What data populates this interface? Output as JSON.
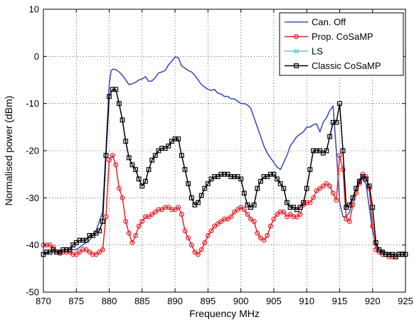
{
  "chart_data": {
    "type": "line",
    "title": "",
    "xlabel": "Frequency MHz",
    "ylabel": "Normalised power (dBm)",
    "xlim": [
      870,
      925
    ],
    "ylim": [
      -50,
      10
    ],
    "xticks": [
      870,
      875,
      880,
      885,
      890,
      895,
      900,
      905,
      910,
      915,
      920,
      925
    ],
    "yticks": [
      -50,
      -40,
      -30,
      -20,
      -10,
      0,
      10
    ],
    "grid": true,
    "legend_position": "top-right",
    "series": [
      {
        "name": "Can. Off",
        "color": "#3f51b5",
        "marker": "none",
        "x": [
          870,
          871,
          872,
          873,
          874,
          875,
          876,
          877,
          878,
          879,
          879.5,
          880,
          880.3,
          880.6,
          881,
          881.5,
          882,
          882.5,
          883,
          883.5,
          884,
          884.5,
          885,
          885.5,
          886,
          886.5,
          887,
          887.5,
          888,
          888.5,
          889,
          889.5,
          890,
          890.5,
          891,
          891.5,
          892,
          892.5,
          893,
          893.5,
          894,
          894.5,
          895,
          895.5,
          896,
          896.5,
          897,
          897.5,
          898,
          898.5,
          899,
          899.5,
          900,
          900.5,
          901,
          901.5,
          902,
          902.5,
          903,
          903.5,
          904,
          904.5,
          905,
          905.5,
          906,
          906.5,
          907,
          907.5,
          908,
          908.5,
          909,
          909.5,
          910,
          910.5,
          911,
          911.5,
          912,
          912.5,
          913,
          913.5,
          914,
          914.5,
          915,
          915.5,
          916,
          916.5,
          917,
          917.5,
          918,
          918.5,
          919,
          919.5,
          920,
          920.5,
          921,
          922,
          923,
          924,
          925
        ],
        "y": [
          -42,
          -41.5,
          -41.5,
          -41,
          -41,
          -41,
          -40,
          -39,
          -37,
          -33,
          -20,
          -6,
          -3,
          -2.7,
          -2.8,
          -3.3,
          -4,
          -5,
          -6,
          -5.8,
          -5.5,
          -5,
          -4.8,
          -4.3,
          -5.3,
          -5.2,
          -4.5,
          -3.5,
          -3.3,
          -3,
          -1.8,
          -1,
          -0.1,
          -0.3,
          -2,
          -2.5,
          -3,
          -3.3,
          -4,
          -5,
          -6,
          -6.5,
          -7,
          -7.2,
          -7,
          -7.8,
          -8,
          -8.5,
          -8.5,
          -9,
          -9,
          -9.5,
          -10,
          -10,
          -10.3,
          -11,
          -13,
          -15,
          -17,
          -19,
          -20.5,
          -21.5,
          -22.5,
          -23.5,
          -24,
          -22.5,
          -21,
          -19,
          -18,
          -17,
          -16.5,
          -16,
          -15,
          -15,
          -14.5,
          -14.3,
          -16,
          -14,
          -13,
          -11.5,
          -10.5,
          -20,
          -31,
          -34,
          -34,
          -33,
          -30,
          -28,
          -26,
          -26,
          -27,
          -32,
          -37,
          -40,
          -41,
          -41.5,
          -42,
          -41.5,
          -41.5
        ]
      },
      {
        "name": "Prop. CoSaMP",
        "color": "#e8222a",
        "marker": "circle",
        "x": [
          870,
          870.5,
          871,
          871.5,
          872,
          872.5,
          873,
          873.5,
          874,
          874.5,
          875,
          875.5,
          876,
          876.5,
          877,
          877.5,
          878,
          878.5,
          879,
          879.5,
          880,
          880.5,
          881,
          881.5,
          882,
          882.5,
          883,
          883.5,
          884,
          884.5,
          885,
          885.5,
          886,
          886.5,
          887,
          887.5,
          888,
          888.5,
          889,
          889.5,
          890,
          890.5,
          891,
          891.5,
          892,
          892.5,
          893,
          893.5,
          894,
          894.5,
          895,
          895.5,
          896,
          896.5,
          897,
          897.5,
          898,
          898.5,
          899,
          899.5,
          900,
          900.5,
          901,
          901.5,
          902,
          902.5,
          903,
          903.5,
          904,
          904.5,
          905,
          905.5,
          906,
          906.5,
          907,
          907.5,
          908,
          908.5,
          909,
          909.5,
          910,
          910.5,
          911,
          911.5,
          912,
          912.5,
          913,
          913.5,
          914,
          914.5,
          915,
          915.5,
          916,
          916.5,
          917,
          917.5,
          918,
          918.5,
          919,
          919.5,
          920,
          920.5,
          921,
          921.5,
          922,
          922.5,
          923,
          923.5,
          924,
          924.5,
          925
        ],
        "y": [
          -40,
          -40,
          -40,
          -40.5,
          -41.5,
          -41.8,
          -41.5,
          -41.5,
          -41.5,
          -42,
          -42,
          -41.5,
          -41,
          -41,
          -41.5,
          -42,
          -42,
          -41.5,
          -41,
          -34,
          -22,
          -21,
          -23,
          -28,
          -30,
          -35,
          -37.5,
          -39.5,
          -38,
          -36,
          -35,
          -34,
          -34,
          -33.5,
          -33,
          -32.5,
          -32.5,
          -32,
          -32,
          -32.5,
          -32.5,
          -32,
          -33.5,
          -37,
          -38.5,
          -40,
          -41.5,
          -42,
          -41,
          -39.5,
          -38,
          -37,
          -36,
          -35.5,
          -35,
          -34.5,
          -34.5,
          -34,
          -33,
          -32.5,
          -32,
          -32.5,
          -33.5,
          -34.5,
          -35,
          -37.5,
          -38.5,
          -39,
          -38,
          -36,
          -34.5,
          -33.5,
          -33,
          -33,
          -34,
          -33.5,
          -34,
          -34,
          -33.5,
          -31.5,
          -31,
          -31,
          -30,
          -28.5,
          -28,
          -27.5,
          -27,
          -27.5,
          -29,
          -30.5,
          -21,
          -24,
          -34.5,
          -35,
          -31.5,
          -29,
          -27,
          -25,
          -25.5,
          -28,
          -36,
          -41,
          -41.5,
          -42,
          -42,
          -42.5,
          -42.5,
          -42.5,
          -42,
          -42,
          -42
        ]
      },
      {
        "name": "LS",
        "color": "#5ec8d0",
        "marker": "x",
        "x": [],
        "y": []
      },
      {
        "name": "Classic CoSaMP",
        "color": "#000000",
        "marker": "square",
        "x": [
          870,
          870.5,
          871,
          871.5,
          872,
          872.5,
          873,
          873.5,
          874,
          874.5,
          875,
          875.5,
          876,
          876.5,
          877,
          877.5,
          878,
          878.5,
          879,
          879.5,
          880,
          880.5,
          881,
          881.5,
          882,
          882.5,
          883,
          883.5,
          884,
          884.5,
          885,
          885.5,
          886,
          886.5,
          887,
          887.5,
          888,
          888.5,
          889,
          889.5,
          890,
          890.5,
          891,
          891.5,
          892,
          892.5,
          893,
          893.5,
          894,
          894.5,
          895,
          895.5,
          896,
          896.5,
          897,
          897.5,
          898,
          898.5,
          899,
          899.5,
          900,
          900.5,
          901,
          901.5,
          902,
          902.5,
          903,
          903.5,
          904,
          904.5,
          905,
          905.5,
          906,
          906.5,
          907,
          907.5,
          908,
          908.5,
          909,
          909.5,
          910,
          910.5,
          911,
          911.5,
          912,
          912.5,
          913,
          913.5,
          914,
          914.5,
          915,
          915.5,
          916,
          916.5,
          917,
          917.5,
          918,
          918.5,
          919,
          919.5,
          920,
          920.5,
          921,
          921.5,
          922,
          922.5,
          923,
          923.5,
          924,
          924.5,
          925
        ],
        "y": [
          -42,
          -41.5,
          -41.5,
          -41,
          -41.5,
          -41.5,
          -41,
          -41,
          -41,
          -40,
          -39.5,
          -39,
          -39,
          -39,
          -38,
          -38,
          -37.5,
          -37,
          -35,
          -21,
          -8.5,
          -7,
          -7,
          -10,
          -13.5,
          -18,
          -21.5,
          -23,
          -24,
          -26,
          -27.5,
          -26.5,
          -24,
          -22,
          -21,
          -20,
          -19.5,
          -19.5,
          -19,
          -18,
          -17.5,
          -17.5,
          -21,
          -24,
          -27,
          -30,
          -31.5,
          -31,
          -29.5,
          -28,
          -27,
          -26,
          -25.5,
          -25.5,
          -25,
          -25,
          -25,
          -25.5,
          -25.5,
          -25.5,
          -26,
          -29,
          -31.5,
          -32,
          -31.5,
          -28,
          -26.5,
          -25.5,
          -25.5,
          -25,
          -25,
          -26,
          -27,
          -28,
          -31,
          -32,
          -32,
          -32.5,
          -32,
          -31,
          -28,
          -24,
          -20,
          -20,
          -20,
          -20.5,
          -20,
          -17,
          -14,
          -14,
          -10,
          -20,
          -32,
          -31.5,
          -30,
          -28,
          -26.5,
          -25.5,
          -26,
          -27.5,
          -32,
          -39.5,
          -41,
          -41.5,
          -42,
          -42,
          -42,
          -42.5,
          -42,
          -42,
          -42
        ]
      }
    ]
  }
}
